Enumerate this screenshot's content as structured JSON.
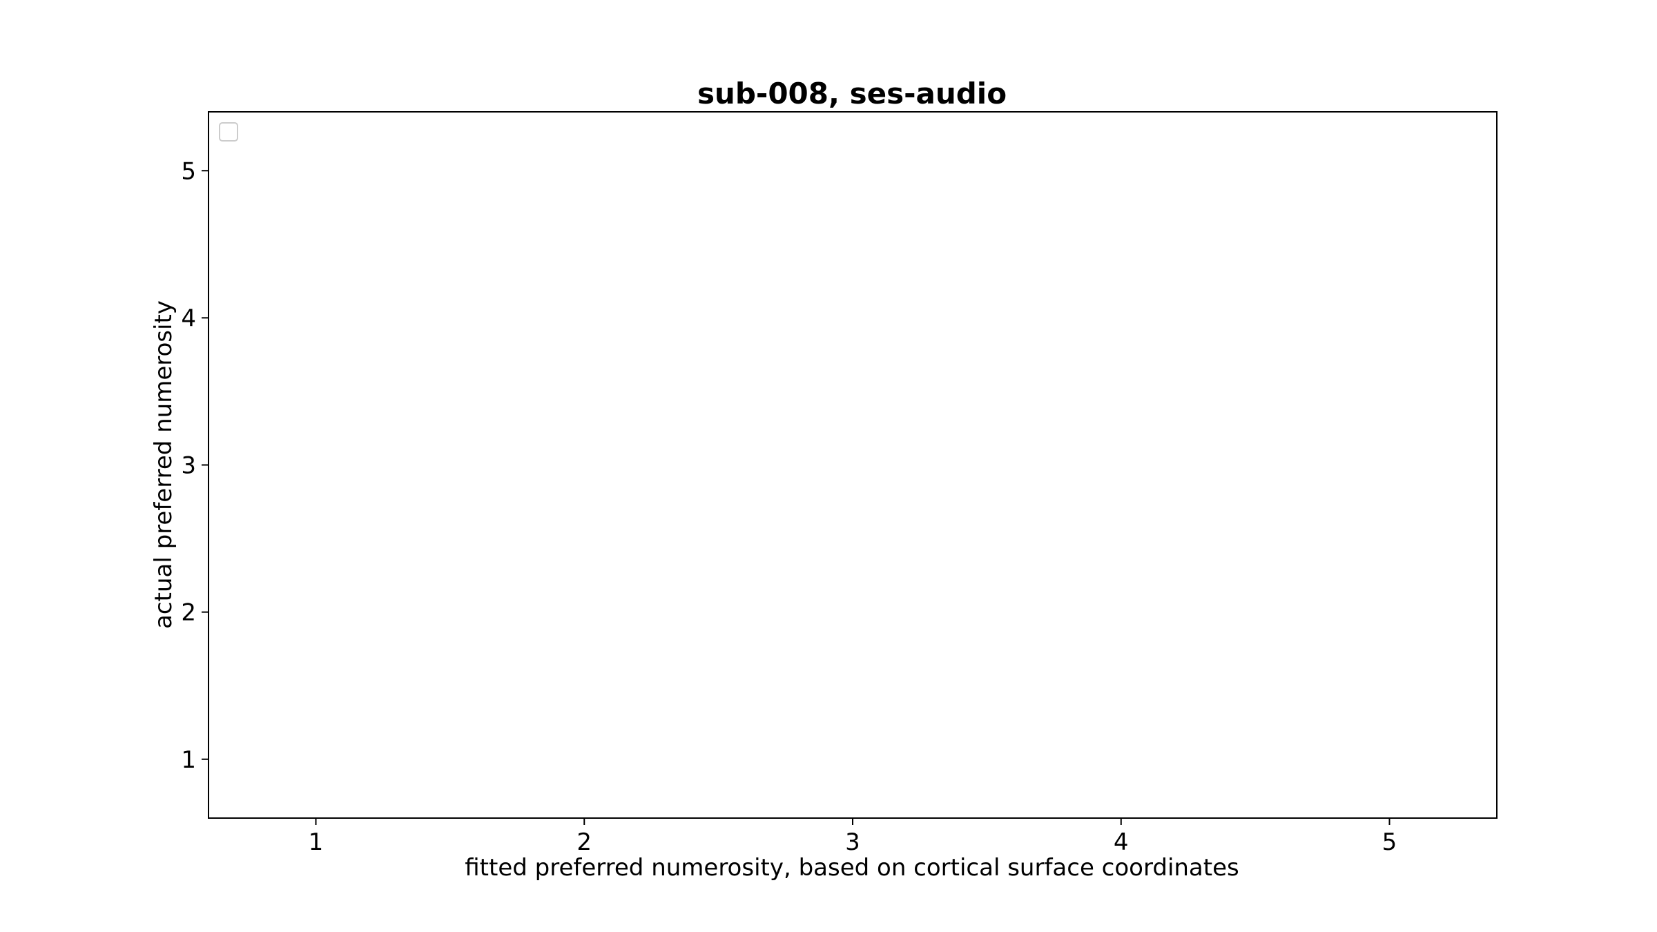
{
  "chart_data": {
    "type": "scatter",
    "title": "sub-008, ses-audio",
    "xlabel": "fitted preferred numerosity, based on cortical surface coordinates",
    "ylabel": "actual preferred numerosity",
    "xlim": [
      0.6,
      5.4
    ],
    "ylim": [
      0.6,
      5.4
    ],
    "xticks": [
      "1",
      "2",
      "3",
      "4",
      "5"
    ],
    "yticks": [
      "1",
      "2",
      "3",
      "4",
      "5"
    ],
    "series": [],
    "grid": false,
    "legend": {
      "placement": "upper-left",
      "entries": []
    }
  }
}
